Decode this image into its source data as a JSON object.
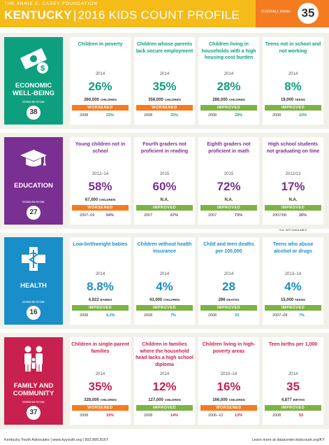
{
  "header": {
    "foundation": "THE ANNIE E. CASEY FOUNDATION",
    "state": "KENTUCKY",
    "separator": "|",
    "subtitle": "2016 KIDS COUNT PROFILE",
    "overall_rank_label": "OVERALL RANK",
    "overall_rank": "35"
  },
  "domain_rank_label": "DOMAIN RANK",
  "not_available_note": "N.A. NOT AVAILABLE",
  "colors": {
    "header": "#f4bb19",
    "rank": "#f57b20",
    "economic": "#0ea07e",
    "education": "#7a2f92",
    "health": "#1a8ec9",
    "family": "#c8204f",
    "worsened": "#f57b20",
    "improved": "#7cb342"
  },
  "domains": [
    {
      "key": "economic",
      "icon": "money-icon",
      "name": [
        "ECONOMIC",
        "WELL-BEING"
      ],
      "rank": "38",
      "indicators": [
        {
          "title": "Children in poverty",
          "year": "2014",
          "value": "26%",
          "count": "260,000",
          "unit": "CHILDREN",
          "status": "WORSENED",
          "cmp_year": "2008",
          "cmp_value": "23%"
        },
        {
          "title": "Children whose parents lack secure employment",
          "year": "2014",
          "value": "35%",
          "count": "356,000",
          "unit": "CHILDREN",
          "status": "WORSENED",
          "cmp_year": "2008",
          "cmp_value": "33%"
        },
        {
          "title": "Children living in households with a high housing cost burden",
          "year": "2014",
          "value": "28%",
          "count": "286,000",
          "unit": "CHILDREN",
          "status": "IMPROVED",
          "cmp_year": "2008",
          "cmp_value": "29%"
        },
        {
          "title": "Teens not in school and not working",
          "year": "2014",
          "value": "8%",
          "count": "19,000",
          "unit": "TEENS",
          "status": "IMPROVED",
          "cmp_year": "2008",
          "cmp_value": "10%"
        }
      ]
    },
    {
      "key": "education",
      "icon": "graduation-cap-icon",
      "name": [
        "EDUCATION"
      ],
      "rank": "27",
      "indicators": [
        {
          "title": "Young children not in school",
          "year": "2012–14",
          "value": "58%",
          "count": "67,000",
          "unit": "CHILDREN",
          "status": "WORSENED",
          "cmp_year": "2007–09",
          "cmp_value": "54%"
        },
        {
          "title": "Fourth graders not proficient in reading",
          "year": "2015",
          "value": "60%",
          "count": "N.A.",
          "unit": "",
          "status": "IMPROVED",
          "cmp_year": "2007",
          "cmp_value": "67%"
        },
        {
          "title": "Eighth graders not proficient in math",
          "year": "2015",
          "value": "72%",
          "count": "N.A.",
          "unit": "",
          "status": "IMPROVED",
          "cmp_year": "2007",
          "cmp_value": "73%"
        },
        {
          "title": "High school students not graduating on time",
          "year": "2012/13",
          "value": "17%",
          "count": "N.A.",
          "unit": "",
          "status": "IMPROVED",
          "cmp_year": "2007/08",
          "cmp_value": "26%"
        }
      ]
    },
    {
      "key": "health",
      "icon": "medical-cross-icon",
      "name": [
        "HEALTH"
      ],
      "rank": "16",
      "indicators": [
        {
          "title": "Low-birthweight babies",
          "year": "2014",
          "value": "8.8%",
          "count": "4,922",
          "unit": "BABIES",
          "status": "IMPROVED",
          "cmp_year": "2008",
          "cmp_value": "9.2%"
        },
        {
          "title": "Children without health insurance",
          "year": "2014",
          "value": "4%",
          "count": "43,000",
          "unit": "CHILDREN",
          "status": "IMPROVED",
          "cmp_year": "2008",
          "cmp_value": "7%"
        },
        {
          "title": "Child and teen deaths per 100,000",
          "year": "2014",
          "value": "28",
          "count": "296",
          "unit": "DEATHS",
          "status": "IMPROVED",
          "cmp_year": "2008",
          "cmp_value": "33"
        },
        {
          "title": "Teens who abuse alcohol or drugs",
          "year": "2013–14",
          "value": "4%",
          "count": "15,000",
          "unit": "TEENS",
          "status": "IMPROVED",
          "cmp_year": "2007–08",
          "cmp_value": "7%"
        }
      ]
    },
    {
      "key": "family",
      "icon": "family-icon",
      "name": [
        "FAMILY AND",
        "COMMUNITY"
      ],
      "rank": "37",
      "indicators": [
        {
          "title": "Children in single-parent families",
          "year": "2014",
          "value": "35%",
          "count": "328,000",
          "unit": "CHILDREN",
          "status": "WORSENED",
          "cmp_year": "2008",
          "cmp_value": "33%"
        },
        {
          "title": "Children in families where the household head lacks a high school diploma",
          "year": "2014",
          "value": "12%",
          "count": "127,000",
          "unit": "CHILDREN",
          "status": "IMPROVED",
          "cmp_year": "2008",
          "cmp_value": "14%"
        },
        {
          "title": "Children living in high-poverty areas",
          "year": "2010–14",
          "value": "16%",
          "count": "166,000",
          "unit": "CHILDREN",
          "status": "WORSENED",
          "cmp_year": "2006–10",
          "cmp_value": "13%"
        },
        {
          "title": "Teen births per 1,000",
          "year": "2014",
          "value": "35",
          "count": "4,877",
          "unit": "BIRTHS",
          "status": "IMPROVED",
          "cmp_year": "2008",
          "cmp_value": "53"
        }
      ]
    }
  ],
  "footer": {
    "left": "Kentucky Youth Advocates | www.kyyouth.org | 502.895.8167",
    "right": "Learn more at datacenter.kidscount.org/KY"
  }
}
